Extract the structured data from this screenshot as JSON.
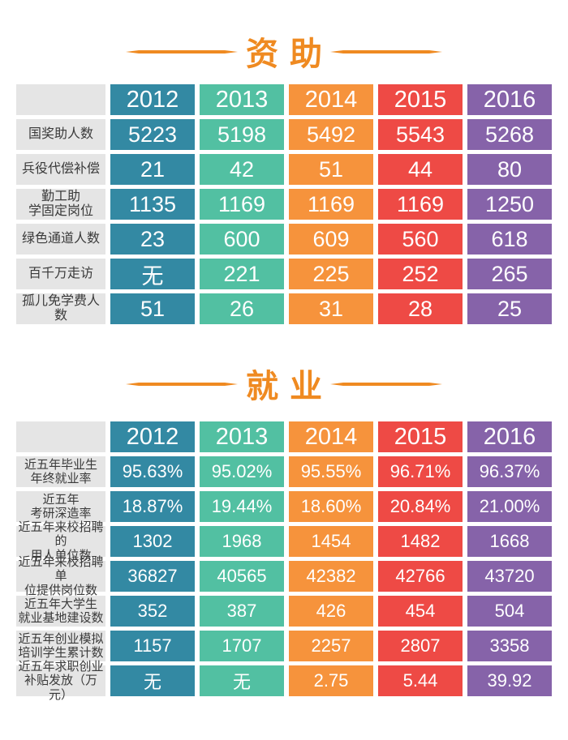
{
  "colors": {
    "accent_orange": "#EF8A21",
    "col_2012": "#3389A3",
    "col_2013": "#52C0A2",
    "col_2014": "#F6933C",
    "col_2015": "#EE4A45",
    "col_2016": "#8663A9",
    "label_bg": "#E5E5E5",
    "label_text": "#3A3A3A",
    "value_text": "#FFFFFF"
  },
  "chart_data": [
    {
      "type": "table",
      "title": "资助",
      "columns": [
        "",
        "2012",
        "2013",
        "2014",
        "2015",
        "2016"
      ],
      "rows": [
        {
          "label": "国奖助人数",
          "values": [
            "5223",
            "5198",
            "5492",
            "5543",
            "5268"
          ]
        },
        {
          "label": "兵役代偿补偿",
          "values": [
            "21",
            "42",
            "51",
            "44",
            "80"
          ]
        },
        {
          "label": "勤工助\n学固定岗位",
          "values": [
            "1135",
            "1169",
            "1169",
            "1169",
            "1250"
          ]
        },
        {
          "label": "绿色通道人数",
          "values": [
            "23",
            "600",
            "609",
            "560",
            "618"
          ]
        },
        {
          "label": "百千万走访",
          "values": [
            "无",
            "221",
            "225",
            "252",
            "265"
          ]
        },
        {
          "label": "孤儿免学费人数",
          "values": [
            "51",
            "26",
            "31",
            "28",
            "25"
          ]
        }
      ]
    },
    {
      "type": "table",
      "title": "就业",
      "columns": [
        "",
        "2012",
        "2013",
        "2014",
        "2015",
        "2016"
      ],
      "rows": [
        {
          "label": "近五年毕业生\n年终就业率",
          "values": [
            "95.63%",
            "95.02%",
            "95.55%",
            "96.71%",
            "96.37%"
          ]
        },
        {
          "label": "近五年\n考研深造率",
          "values": [
            "18.87%",
            "19.44%",
            "18.60%",
            "20.84%",
            "21.00%"
          ]
        },
        {
          "label": "近五年来校招聘的\n用人单位数",
          "values": [
            "1302",
            "1968",
            "1454",
            "1482",
            "1668"
          ]
        },
        {
          "label": "近五年来校招聘单\n位提供岗位数",
          "values": [
            "36827",
            "40565",
            "42382",
            "42766",
            "43720"
          ]
        },
        {
          "label": "近五年大学生\n就业基地建设数",
          "values": [
            "352",
            "387",
            "426",
            "454",
            "504"
          ]
        },
        {
          "label": "近五年创业模拟\n培训学生累计数",
          "values": [
            "1157",
            "1707",
            "2257",
            "2807",
            "3358"
          ]
        },
        {
          "label": "近五年求职创业\n补贴发放（万元）",
          "values": [
            "无",
            "无",
            "2.75",
            "5.44",
            "39.92"
          ]
        }
      ]
    }
  ]
}
